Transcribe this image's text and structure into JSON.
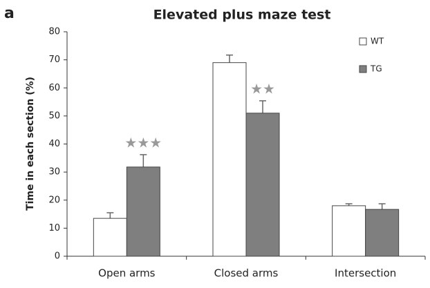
{
  "chart_data": {
    "type": "bar",
    "panel_label": "a",
    "title": "Elevated plus maze test",
    "ylabel": "Time in each section (%)",
    "categories": [
      "Open arms",
      "Closed arms",
      "Intersection"
    ],
    "series": [
      {
        "name": "WT",
        "color": "#ffffff",
        "values": [
          13.5,
          69,
          18
        ],
        "errors": [
          2,
          2.7,
          0.7
        ]
      },
      {
        "name": "TG",
        "color": "#7f7f7f",
        "values": [
          31.8,
          51,
          16.7
        ],
        "errors": [
          4.4,
          4.4,
          2
        ]
      }
    ],
    "annotations": [
      {
        "text": "★★★",
        "category": 0,
        "series": 1,
        "color": "#999999"
      },
      {
        "text": "★★",
        "category": 1,
        "series": 1,
        "color": "#999999"
      }
    ],
    "ylim": [
      0,
      80
    ],
    "yticks": [
      0,
      10,
      20,
      30,
      40,
      50,
      60,
      70,
      80
    ],
    "legend": "upper right"
  }
}
